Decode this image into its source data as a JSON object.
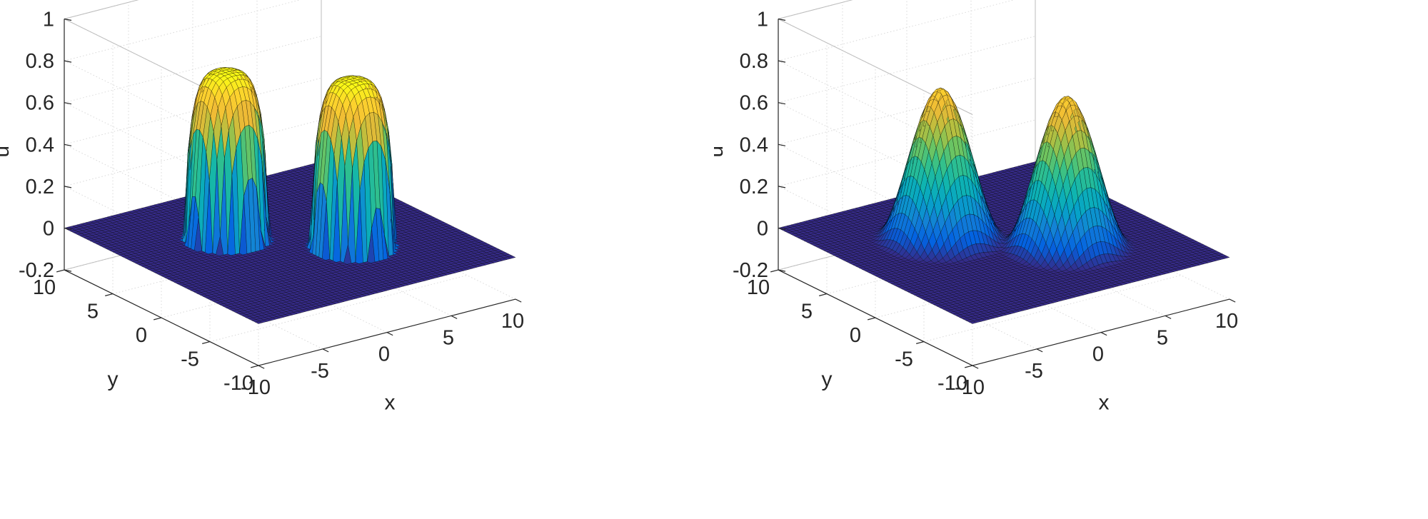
{
  "chart_data": [
    {
      "type": "surface",
      "title": "",
      "xlabel": "x",
      "ylabel": "y",
      "zlabel": "u",
      "xlim": [
        -10,
        10
      ],
      "ylim": [
        -10,
        10
      ],
      "zlim": [
        -0.2,
        1
      ],
      "xticks": [
        "-10",
        "-5",
        "0",
        "5",
        "10"
      ],
      "yticks": [
        "-10",
        "-5",
        "0",
        "5",
        "10"
      ],
      "zticks": [
        "-0.2",
        "0",
        "0.2",
        "0.4",
        "0.6",
        "0.8",
        "1"
      ],
      "grid": true,
      "colormap": "parula",
      "surface": {
        "shape": "compact-pulses",
        "peaks": [
          {
            "x": -2.8,
            "y": 2.8,
            "amplitude": 0.8,
            "radius": 2.6
          },
          {
            "x": 2.8,
            "y": -2.8,
            "amplitude": 0.8,
            "radius": 2.6
          }
        ],
        "baseline": 0
      }
    },
    {
      "type": "surface",
      "title": "",
      "xlabel": "x",
      "ylabel": "y",
      "zlabel": "u",
      "xlim": [
        -10,
        10
      ],
      "ylim": [
        -10,
        10
      ],
      "zlim": [
        -0.2,
        1
      ],
      "xticks": [
        "-10",
        "-5",
        "0",
        "5",
        "10"
      ],
      "yticks": [
        "-10",
        "-5",
        "0",
        "5",
        "10"
      ],
      "zticks": [
        "-0.2",
        "0",
        "0.2",
        "0.4",
        "0.6",
        "0.8",
        "1"
      ],
      "grid": true,
      "colormap": "parula",
      "surface": {
        "shape": "smooth-bumps",
        "peaks": [
          {
            "x": -2.8,
            "y": 2.8,
            "amplitude": 0.72,
            "radius": 4.2
          },
          {
            "x": 2.8,
            "y": -2.8,
            "amplitude": 0.72,
            "radius": 4.2
          }
        ],
        "baseline": 0
      }
    }
  ]
}
